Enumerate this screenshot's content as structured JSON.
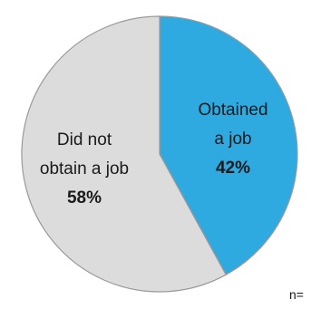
{
  "chart_data": {
    "type": "pie",
    "slices": [
      {
        "label_lines": [
          "Obtained",
          "a job"
        ],
        "percent_label": "42%",
        "value": 42,
        "color": "#2eaae1"
      },
      {
        "label_lines": [
          "Did not",
          "obtain a job"
        ],
        "percent_label": "58%",
        "value": 58,
        "color": "#dcdcdc"
      }
    ],
    "start": "12 o'clock",
    "direction": "clockwise",
    "slice_border_color": "#9a9a9a",
    "footnote": "n="
  }
}
